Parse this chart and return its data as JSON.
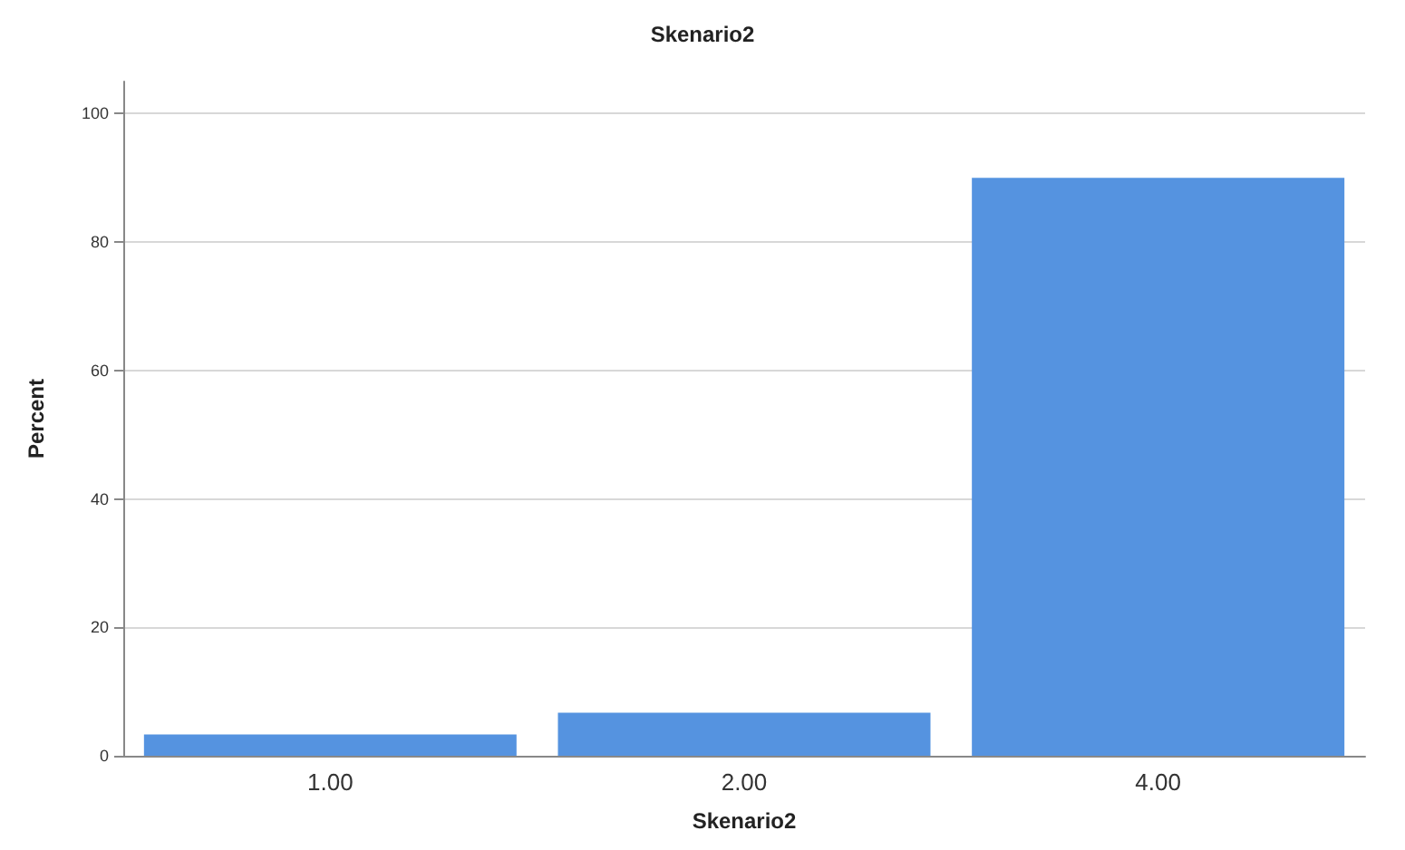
{
  "chart_data": {
    "type": "bar",
    "title": "Skenario2",
    "xlabel": "Skenario2",
    "ylabel": "Percent",
    "categories": [
      "1.00",
      "2.00",
      "4.00"
    ],
    "values": [
      3.3,
      6.7,
      90
    ],
    "color": "#5593e0",
    "ylim": [
      0,
      105
    ],
    "yticks": [
      0,
      20,
      40,
      60,
      80,
      100
    ],
    "grid": "y"
  }
}
